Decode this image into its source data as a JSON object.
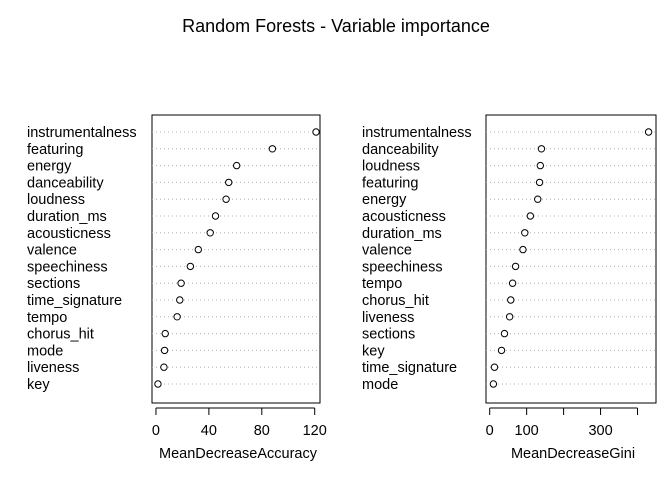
{
  "chart_data": [
    {
      "type": "dotchart",
      "title": "Random Forests - Variable importance",
      "xlabel": "MeanDecreaseAccuracy",
      "ylabel": "",
      "xlim": [
        -3,
        124
      ],
      "xticks": [
        0,
        40,
        80,
        120
      ],
      "grid": "dotted horizontal",
      "categories": [
        "instrumentalness",
        "featuring",
        "energy",
        "danceability",
        "loudness",
        "duration_ms",
        "acousticness",
        "valence",
        "speechiness",
        "sections",
        "time_signature",
        "tempo",
        "chorus_hit",
        "mode",
        "liveness",
        "key"
      ],
      "values": [
        121,
        88,
        61,
        55,
        53,
        45,
        41,
        32,
        26,
        19,
        18,
        16,
        7,
        6.5,
        6,
        1.5
      ]
    },
    {
      "type": "dotchart",
      "title": "Random Forests - Variable importance",
      "xlabel": "MeanDecreaseGini",
      "ylabel": "",
      "xlim": [
        -10,
        450
      ],
      "xticks": [
        0,
        100,
        300
      ],
      "minor_ticks": [
        200,
        400
      ],
      "grid": "dotted horizontal",
      "categories": [
        "instrumentalness",
        "danceability",
        "loudness",
        "featuring",
        "energy",
        "acousticness",
        "duration_ms",
        "valence",
        "speechiness",
        "tempo",
        "chorus_hit",
        "liveness",
        "sections",
        "key",
        "time_signature",
        "mode"
      ],
      "values": [
        430,
        140,
        137,
        135,
        130,
        110,
        95,
        90,
        70,
        62,
        57,
        54,
        40,
        32,
        13,
        10
      ]
    }
  ],
  "figure": {
    "title": "Random Forests - Variable importance"
  }
}
